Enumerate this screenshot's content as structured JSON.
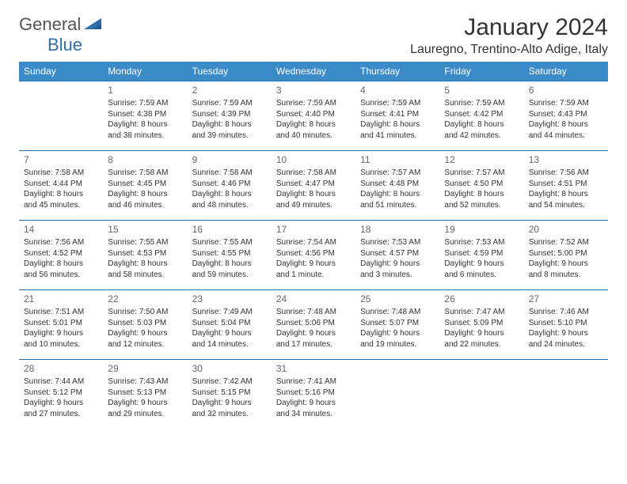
{
  "logo": {
    "part1": "General",
    "part2": "Blue"
  },
  "title": "January 2024",
  "location": "Lauregno, Trentino-Alto Adige, Italy",
  "colors": {
    "header_bg": "#3b8bc9",
    "header_text": "#ffffff",
    "cell_border": "#2f6fab",
    "daynum": "#666666",
    "body_text": "#333333",
    "logo_gray": "#555555",
    "logo_blue": "#2f6fab"
  },
  "weekdays": [
    "Sunday",
    "Monday",
    "Tuesday",
    "Wednesday",
    "Thursday",
    "Friday",
    "Saturday"
  ],
  "weeks": [
    [
      null,
      {
        "n": "1",
        "sr": "Sunrise: 7:59 AM",
        "ss": "Sunset: 4:38 PM",
        "d1": "Daylight: 8 hours",
        "d2": "and 38 minutes."
      },
      {
        "n": "2",
        "sr": "Sunrise: 7:59 AM",
        "ss": "Sunset: 4:39 PM",
        "d1": "Daylight: 8 hours",
        "d2": "and 39 minutes."
      },
      {
        "n": "3",
        "sr": "Sunrise: 7:59 AM",
        "ss": "Sunset: 4:40 PM",
        "d1": "Daylight: 8 hours",
        "d2": "and 40 minutes."
      },
      {
        "n": "4",
        "sr": "Sunrise: 7:59 AM",
        "ss": "Sunset: 4:41 PM",
        "d1": "Daylight: 8 hours",
        "d2": "and 41 minutes."
      },
      {
        "n": "5",
        "sr": "Sunrise: 7:59 AM",
        "ss": "Sunset: 4:42 PM",
        "d1": "Daylight: 8 hours",
        "d2": "and 42 minutes."
      },
      {
        "n": "6",
        "sr": "Sunrise: 7:59 AM",
        "ss": "Sunset: 4:43 PM",
        "d1": "Daylight: 8 hours",
        "d2": "and 44 minutes."
      }
    ],
    [
      {
        "n": "7",
        "sr": "Sunrise: 7:58 AM",
        "ss": "Sunset: 4:44 PM",
        "d1": "Daylight: 8 hours",
        "d2": "and 45 minutes."
      },
      {
        "n": "8",
        "sr": "Sunrise: 7:58 AM",
        "ss": "Sunset: 4:45 PM",
        "d1": "Daylight: 8 hours",
        "d2": "and 46 minutes."
      },
      {
        "n": "9",
        "sr": "Sunrise: 7:58 AM",
        "ss": "Sunset: 4:46 PM",
        "d1": "Daylight: 8 hours",
        "d2": "and 48 minutes."
      },
      {
        "n": "10",
        "sr": "Sunrise: 7:58 AM",
        "ss": "Sunset: 4:47 PM",
        "d1": "Daylight: 8 hours",
        "d2": "and 49 minutes."
      },
      {
        "n": "11",
        "sr": "Sunrise: 7:57 AM",
        "ss": "Sunset: 4:48 PM",
        "d1": "Daylight: 8 hours",
        "d2": "and 51 minutes."
      },
      {
        "n": "12",
        "sr": "Sunrise: 7:57 AM",
        "ss": "Sunset: 4:50 PM",
        "d1": "Daylight: 8 hours",
        "d2": "and 52 minutes."
      },
      {
        "n": "13",
        "sr": "Sunrise: 7:56 AM",
        "ss": "Sunset: 4:51 PM",
        "d1": "Daylight: 8 hours",
        "d2": "and 54 minutes."
      }
    ],
    [
      {
        "n": "14",
        "sr": "Sunrise: 7:56 AM",
        "ss": "Sunset: 4:52 PM",
        "d1": "Daylight: 8 hours",
        "d2": "and 56 minutes."
      },
      {
        "n": "15",
        "sr": "Sunrise: 7:55 AM",
        "ss": "Sunset: 4:53 PM",
        "d1": "Daylight: 8 hours",
        "d2": "and 58 minutes."
      },
      {
        "n": "16",
        "sr": "Sunrise: 7:55 AM",
        "ss": "Sunset: 4:55 PM",
        "d1": "Daylight: 8 hours",
        "d2": "and 59 minutes."
      },
      {
        "n": "17",
        "sr": "Sunrise: 7:54 AM",
        "ss": "Sunset: 4:56 PM",
        "d1": "Daylight: 9 hours",
        "d2": "and 1 minute."
      },
      {
        "n": "18",
        "sr": "Sunrise: 7:53 AM",
        "ss": "Sunset: 4:57 PM",
        "d1": "Daylight: 9 hours",
        "d2": "and 3 minutes."
      },
      {
        "n": "19",
        "sr": "Sunrise: 7:53 AM",
        "ss": "Sunset: 4:59 PM",
        "d1": "Daylight: 9 hours",
        "d2": "and 6 minutes."
      },
      {
        "n": "20",
        "sr": "Sunrise: 7:52 AM",
        "ss": "Sunset: 5:00 PM",
        "d1": "Daylight: 9 hours",
        "d2": "and 8 minutes."
      }
    ],
    [
      {
        "n": "21",
        "sr": "Sunrise: 7:51 AM",
        "ss": "Sunset: 5:01 PM",
        "d1": "Daylight: 9 hours",
        "d2": "and 10 minutes."
      },
      {
        "n": "22",
        "sr": "Sunrise: 7:50 AM",
        "ss": "Sunset: 5:03 PM",
        "d1": "Daylight: 9 hours",
        "d2": "and 12 minutes."
      },
      {
        "n": "23",
        "sr": "Sunrise: 7:49 AM",
        "ss": "Sunset: 5:04 PM",
        "d1": "Daylight: 9 hours",
        "d2": "and 14 minutes."
      },
      {
        "n": "24",
        "sr": "Sunrise: 7:48 AM",
        "ss": "Sunset: 5:06 PM",
        "d1": "Daylight: 9 hours",
        "d2": "and 17 minutes."
      },
      {
        "n": "25",
        "sr": "Sunrise: 7:48 AM",
        "ss": "Sunset: 5:07 PM",
        "d1": "Daylight: 9 hours",
        "d2": "and 19 minutes."
      },
      {
        "n": "26",
        "sr": "Sunrise: 7:47 AM",
        "ss": "Sunset: 5:09 PM",
        "d1": "Daylight: 9 hours",
        "d2": "and 22 minutes."
      },
      {
        "n": "27",
        "sr": "Sunrise: 7:46 AM",
        "ss": "Sunset: 5:10 PM",
        "d1": "Daylight: 9 hours",
        "d2": "and 24 minutes."
      }
    ],
    [
      {
        "n": "28",
        "sr": "Sunrise: 7:44 AM",
        "ss": "Sunset: 5:12 PM",
        "d1": "Daylight: 9 hours",
        "d2": "and 27 minutes."
      },
      {
        "n": "29",
        "sr": "Sunrise: 7:43 AM",
        "ss": "Sunset: 5:13 PM",
        "d1": "Daylight: 9 hours",
        "d2": "and 29 minutes."
      },
      {
        "n": "30",
        "sr": "Sunrise: 7:42 AM",
        "ss": "Sunset: 5:15 PM",
        "d1": "Daylight: 9 hours",
        "d2": "and 32 minutes."
      },
      {
        "n": "31",
        "sr": "Sunrise: 7:41 AM",
        "ss": "Sunset: 5:16 PM",
        "d1": "Daylight: 9 hours",
        "d2": "and 34 minutes."
      },
      null,
      null,
      null
    ]
  ]
}
